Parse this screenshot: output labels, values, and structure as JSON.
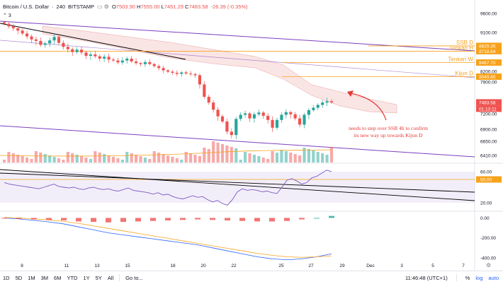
{
  "header": {
    "symbol": "Bitcoin / U.S. Dollar",
    "interval": "240",
    "exchange": "BITSTAMP",
    "ohlc": {
      "open": "7503.90",
      "high": "7555.00",
      "low": "7451.29",
      "close": "7483.58"
    },
    "change": "-26.39 (-0.35%)",
    "collapsed_count": "3"
  },
  "toolbar": {
    "ranges": [
      "1D",
      "5D",
      "1M",
      "3M",
      "6M",
      "YTD",
      "1Y",
      "5Y",
      "All"
    ],
    "goto": "Go to...",
    "clock": "11:46:48 (UTC+1)",
    "percent": "%",
    "log": "log",
    "auto": "auto"
  },
  "annotation": {
    "line1": "needs to step over SSB 4h to confirm",
    "line2": "its new way up towards Kijun D"
  },
  "colors": {
    "up": "#26a69a",
    "down": "#ef5350",
    "orange": "#f7a21b",
    "purple": "#7b3fbf",
    "cloud": "#f5c6c6",
    "rsi": "#7e57c2",
    "annotation": "#e53935"
  },
  "chart_data": [
    {
      "type": "candlestick",
      "pane": "price",
      "x_tick_labels": [
        "8",
        "11",
        "13",
        "15",
        "18",
        "20",
        "22",
        "25",
        "27",
        "29",
        "Dec",
        "3",
        "5",
        "7"
      ],
      "y_tick_labels": [
        "9600.00",
        "9100.00",
        "8800.00",
        "8500.00",
        "8200.00",
        "7900.00",
        "7500.00",
        "7200.00",
        "6900.00",
        "6650.00",
        "6410.00"
      ],
      "ylim": [
        6300,
        9700
      ],
      "price_labels": [
        {
          "text": "8829.35",
          "name": "SSB D",
          "value": 8829.35
        },
        {
          "text": "8718.64",
          "name": "Tenkan H",
          "value": 8718.64
        },
        {
          "text": "8467.70",
          "name": "Tenkan W",
          "value": 8467.7
        },
        {
          "text": "8049.80",
          "name": "Kijun D",
          "value": 8049.8
        },
        {
          "text": "7483.58",
          "name": "",
          "value": 7483.58
        },
        {
          "text": "01:13:11",
          "name": "",
          "value": null
        }
      ],
      "close_series": [
        9330,
        9260,
        9210,
        9150,
        9080,
        9020,
        8960,
        8930,
        8850,
        8880,
        8940,
        9010,
        8890,
        8810,
        8760,
        8700,
        8750,
        8690,
        8620,
        8650,
        8610,
        8560,
        8600,
        8540,
        8520,
        8470,
        8520,
        8560,
        8500,
        8450,
        8420,
        8480,
        8420,
        8360,
        8300,
        8230,
        8190,
        8160,
        8130,
        8170,
        8140,
        8120,
        8090,
        7850,
        7600,
        7480,
        7300,
        7150,
        7050,
        6850,
        6780,
        7100,
        7180,
        7210,
        7110,
        7190,
        7230,
        7160,
        7080,
        6930,
        7080,
        7180,
        7240,
        7190,
        7110,
        6990,
        7180,
        7290,
        7350,
        7420,
        7480,
        7510,
        7484
      ]
    },
    {
      "type": "line",
      "pane": "rsi",
      "y_tick_labels": [
        "60.00",
        "50.00",
        "20.00"
      ],
      "ylim": [
        10,
        70
      ],
      "values": [
        46,
        44,
        43,
        42,
        41,
        40,
        39,
        38,
        40,
        42,
        44,
        41,
        40,
        39,
        40,
        38,
        37,
        39,
        40,
        38,
        37,
        38,
        36,
        35,
        37,
        39,
        36,
        35,
        34,
        33,
        31,
        33,
        30,
        31,
        28,
        26,
        25,
        27,
        29,
        27,
        28,
        24,
        21,
        23,
        19,
        17,
        24,
        34,
        38,
        36,
        37,
        36,
        34,
        35,
        33,
        32,
        40,
        49,
        51,
        48,
        44,
        46,
        52,
        54,
        58,
        62,
        60
      ]
    },
    {
      "type": "bar",
      "pane": "macd",
      "y_tick_labels": [
        "0.00",
        "-200.00",
        "-400.00"
      ],
      "ylim": [
        -450,
        60
      ],
      "macd_values": [
        0,
        -10,
        -25,
        -40,
        -60,
        -90,
        -120,
        -150,
        -170,
        -190,
        -210,
        -230,
        -250,
        -270,
        -300,
        -330,
        -360,
        -390,
        -410,
        -420,
        -410,
        -390,
        -360
      ],
      "signal_values": [
        5,
        0,
        -10,
        -20,
        -35,
        -55,
        -80,
        -105,
        -130,
        -155,
        -180,
        -205,
        -230,
        -255,
        -280,
        -305,
        -330,
        -355,
        -375,
        -390,
        -395,
        -390,
        -380
      ],
      "histogram": [
        -5,
        -10,
        -15,
        -20,
        -25,
        -35,
        -40,
        -45,
        -40,
        -35,
        -30,
        -25,
        -20,
        -15,
        -20,
        -25,
        -30,
        -35,
        -35,
        -30,
        -15,
        0,
        20
      ]
    }
  ]
}
